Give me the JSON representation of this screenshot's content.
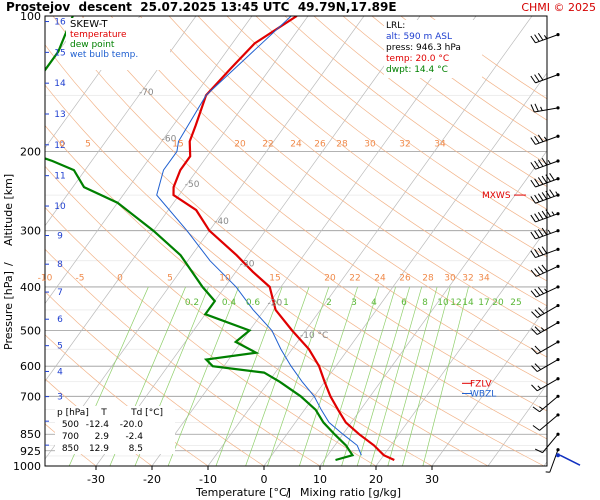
{
  "header": {
    "title": "Prostejov  descent  25.07.2025 13:45 UTC  49.79N,17.89E",
    "credit": "CHMI © 2025"
  },
  "chart_data": {
    "type": "line",
    "subtype": "skew-T log-p diagram",
    "xlabel": "Temperature [°C]",
    "xlabel2": "Mixing ratio [g/kg]",
    "ylabel": "Pressure [hPa]",
    "ylabel2": "Altitude [km]",
    "x_ticks": [
      -30,
      -20,
      -10,
      0,
      10,
      20,
      30
    ],
    "p_ticks": [
      100,
      200,
      300,
      400,
      500,
      600,
      700,
      850,
      925,
      1000
    ],
    "altitude_ticks": [
      1,
      2,
      3,
      4,
      5,
      6,
      7,
      8,
      9,
      10,
      11,
      12,
      13,
      14,
      15,
      16
    ],
    "potential_temperature_labels_lower": [
      "-10",
      "-5",
      "0",
      "5",
      "10",
      "15",
      "20",
      "22",
      "24",
      "26",
      "28",
      "30",
      "32",
      "34"
    ],
    "potential_temperature_labels_upper": [
      "0",
      "5",
      "15",
      "20",
      "22",
      "24",
      "26",
      "28",
      "30",
      "32",
      "34"
    ],
    "isotherm_labels": [
      "-80 °C",
      "-70",
      "-60",
      "-50",
      "-40",
      "-30",
      "-20",
      "-10 °C"
    ],
    "mixing_ratio_labels": [
      "0.2",
      "0.4",
      "0.6",
      "1",
      "2",
      "3",
      "4",
      "6",
      "8",
      "10",
      "12",
      "14",
      "17",
      "20",
      "25"
    ],
    "legend": {
      "title": "SKEW-T",
      "entries": [
        {
          "label": "temperature",
          "color": "#e00000"
        },
        {
          "label": "dew point",
          "color": "#008000"
        },
        {
          "label": "wet bulb temp.",
          "color": "#2060d0"
        }
      ]
    },
    "lrl": {
      "title": "LRL:",
      "lines": [
        {
          "text": "alt: 590 m ASL",
          "color": "#2040d0"
        },
        {
          "text": "press: 946.3 hPa",
          "color": "#000000"
        },
        {
          "text": "temp: 20.0 °C",
          "color": "#e00000"
        },
        {
          "text": "dwpt: 14.4 °C",
          "color": "#008000"
        }
      ]
    },
    "levels_table": {
      "headers": [
        "p [hPa]",
        "T",
        "Td [°C]"
      ],
      "rows": [
        [
          "500",
          "-12.4",
          "-20.0"
        ],
        [
          "700",
          "2.9",
          "-2.4"
        ],
        [
          "850",
          "12.9",
          "8.5"
        ]
      ]
    },
    "markers": [
      {
        "label": "MXWS",
        "p": 250,
        "color": "#e00000"
      },
      {
        "label": "FZLV",
        "p": 655,
        "color": "#e00000"
      },
      {
        "label": "WBZL",
        "p": 690,
        "color": "#2060d0"
      }
    ],
    "series": [
      {
        "name": "temperature",
        "color": "#e00000",
        "points": [
          [
            100,
            -52
          ],
          [
            115,
            -56
          ],
          [
            130,
            -57
          ],
          [
            150,
            -58
          ],
          [
            175,
            -56
          ],
          [
            190,
            -55
          ],
          [
            205,
            -53
          ],
          [
            220,
            -53
          ],
          [
            240,
            -52
          ],
          [
            250,
            -51
          ],
          [
            270,
            -45
          ],
          [
            300,
            -40
          ],
          [
            340,
            -32
          ],
          [
            370,
            -27
          ],
          [
            400,
            -22
          ],
          [
            450,
            -18
          ],
          [
            500,
            -12.4
          ],
          [
            550,
            -7
          ],
          [
            600,
            -3
          ],
          [
            650,
            0
          ],
          [
            700,
            2.9
          ],
          [
            750,
            6
          ],
          [
            800,
            9
          ],
          [
            850,
            12.9
          ],
          [
            900,
            17
          ],
          [
            946,
            20
          ],
          [
            970,
            22.5
          ]
        ]
      },
      {
        "name": "dew point",
        "color": "#008000",
        "points": [
          [
            100,
            -92
          ],
          [
            120,
            -90
          ],
          [
            150,
            -90
          ],
          [
            175,
            -87
          ],
          [
            195,
            -86
          ],
          [
            200,
            -94
          ],
          [
            205,
            -80
          ],
          [
            210,
            -77
          ],
          [
            220,
            -72
          ],
          [
            240,
            -68
          ],
          [
            260,
            -60
          ],
          [
            300,
            -50
          ],
          [
            340,
            -42
          ],
          [
            400,
            -34
          ],
          [
            430,
            -30
          ],
          [
            460,
            -30
          ],
          [
            500,
            -20
          ],
          [
            530,
            -21
          ],
          [
            560,
            -16
          ],
          [
            580,
            -24
          ],
          [
            600,
            -22
          ],
          [
            620,
            -12
          ],
          [
            650,
            -8
          ],
          [
            700,
            -2.4
          ],
          [
            750,
            2
          ],
          [
            800,
            5
          ],
          [
            850,
            8.5
          ],
          [
            900,
            12
          ],
          [
            946,
            14.4
          ],
          [
            970,
            12
          ]
        ]
      },
      {
        "name": "wet bulb temp.",
        "color": "#2060d0",
        "points": [
          [
            100,
            -53
          ],
          [
            150,
            -58
          ],
          [
            190,
            -57
          ],
          [
            200,
            -56
          ],
          [
            220,
            -56
          ],
          [
            250,
            -54
          ],
          [
            300,
            -44
          ],
          [
            350,
            -36
          ],
          [
            400,
            -28
          ],
          [
            450,
            -22
          ],
          [
            500,
            -16
          ],
          [
            550,
            -12
          ],
          [
            600,
            -8
          ],
          [
            650,
            -4
          ],
          [
            700,
            0
          ],
          [
            750,
            3
          ],
          [
            800,
            6
          ],
          [
            850,
            10
          ],
          [
            900,
            14
          ],
          [
            946,
            16
          ]
        ]
      }
    ],
    "wind_barbs": [
      {
        "p": 110,
        "dir": 250,
        "speed": 35
      },
      {
        "p": 135,
        "dir": 250,
        "speed": 30
      },
      {
        "p": 160,
        "dir": 260,
        "speed": 25
      },
      {
        "p": 185,
        "dir": 250,
        "speed": 35
      },
      {
        "p": 210,
        "dir": 250,
        "speed": 45
      },
      {
        "p": 230,
        "dir": 250,
        "speed": 60
      },
      {
        "p": 250,
        "dir": 250,
        "speed": 65
      },
      {
        "p": 275,
        "dir": 250,
        "speed": 55
      },
      {
        "p": 300,
        "dir": 250,
        "speed": 45
      },
      {
        "p": 330,
        "dir": 250,
        "speed": 40
      },
      {
        "p": 360,
        "dir": 245,
        "speed": 40
      },
      {
        "p": 400,
        "dir": 245,
        "speed": 35
      },
      {
        "p": 440,
        "dir": 240,
        "speed": 30
      },
      {
        "p": 480,
        "dir": 240,
        "speed": 25
      },
      {
        "p": 530,
        "dir": 240,
        "speed": 20
      },
      {
        "p": 580,
        "dir": 240,
        "speed": 20
      },
      {
        "p": 640,
        "dir": 240,
        "speed": 15
      },
      {
        "p": 700,
        "dir": 230,
        "speed": 15
      },
      {
        "p": 770,
        "dir": 230,
        "speed": 10
      },
      {
        "p": 850,
        "dir": 220,
        "speed": 10
      },
      {
        "p": 920,
        "dir": 200,
        "speed": 5
      }
    ],
    "lrl_marker_p": 946.3
  }
}
